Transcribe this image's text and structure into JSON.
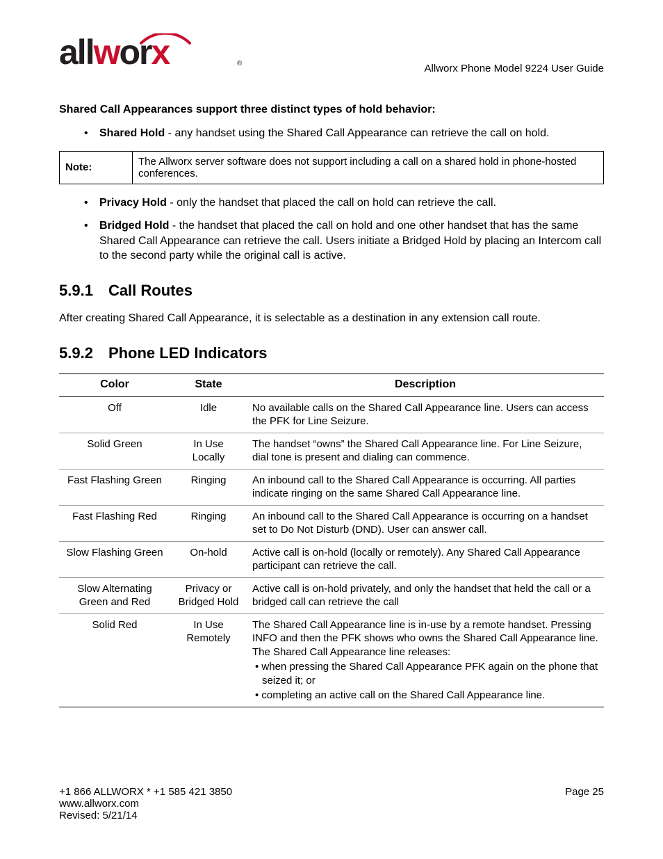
{
  "header": {
    "doc_title": "Allworx Phone Model 9224 User Guide",
    "logo": {
      "text": "allworx",
      "color_dark": "#231f20",
      "color_red": "#c8102e",
      "reg_mark": "®"
    }
  },
  "intro": {
    "heading": "Shared Call Appearances support three distinct types of hold behavior:",
    "items": [
      {
        "term": "Shared Hold",
        "text": " - any handset using the Shared Call Appearance can retrieve the call on hold."
      }
    ]
  },
  "note": {
    "label": "Note:",
    "text": "The Allworx server software does not support including a call on a shared hold in phone-hosted conferences."
  },
  "after_note_items": [
    {
      "term": "Privacy Hold",
      "text": " - only the handset that placed the call on hold can retrieve the call."
    },
    {
      "term": "Bridged Hold",
      "text": " - the handset that placed the call on hold and one other handset that has the same Shared Call Appearance can retrieve the call. Users initiate a Bridged Hold by placing an Intercom call to the second party while the original call is active."
    }
  ],
  "section_591": {
    "num": "5.9.1",
    "title": "Call Routes",
    "body": "After creating Shared Call Appearance, it is selectable as a destination in any extension call route."
  },
  "section_592": {
    "num": "5.9.2",
    "title": "Phone LED Indicators",
    "columns": {
      "c1": "Color",
      "c2": "State",
      "c3": "Description"
    },
    "rows": [
      {
        "color": "Off",
        "state": "Idle",
        "desc": "No available calls on the Shared Call Appearance line. Users can access the PFK for Line Seizure."
      },
      {
        "color": "Solid Green",
        "state": "In Use Locally",
        "desc": "The handset “owns” the Shared Call Appearance line. For Line Seizure, dial tone is present and dialing can commence."
      },
      {
        "color": "Fast Flashing Green",
        "state": "Ringing",
        "desc": "An inbound call to the Shared Call Appearance is occurring. All parties indicate ringing on the same Shared Call Appearance line."
      },
      {
        "color": "Fast Flashing Red",
        "state": "Ringing",
        "desc": "An inbound call to the Shared Call Appearance is occurring on a handset set to Do Not Disturb (DND). User can answer call."
      },
      {
        "color": "Slow Flashing Green",
        "state": "On-hold",
        "desc": "Active call is on-hold (locally or remotely). Any Shared Call Appearance participant can retrieve the call."
      },
      {
        "color": "Slow Alternating Green and Red",
        "state": "Privacy or Bridged Hold",
        "desc": "Active call is on-hold privately, and only the handset that held the call or a bridged call can retrieve the call"
      },
      {
        "color": "Solid Red",
        "state": "In Use Remotely",
        "desc_lines": [
          "The Shared Call Appearance line is in-use by a remote handset. Pressing INFO and then the PFK shows who owns the Shared Call Appearance line. The Shared Call Appearance line releases:",
          "•  when pressing the Shared Call Appearance PFK again on the phone that seized it; or",
          "•  completing an active call on the Shared Call Appearance line."
        ]
      }
    ]
  },
  "footer": {
    "phone": "+1 866 ALLWORX * +1 585 421 3850",
    "page": "Page 25",
    "url": "www.allworx.com",
    "revised": "Revised: 5/21/14"
  }
}
